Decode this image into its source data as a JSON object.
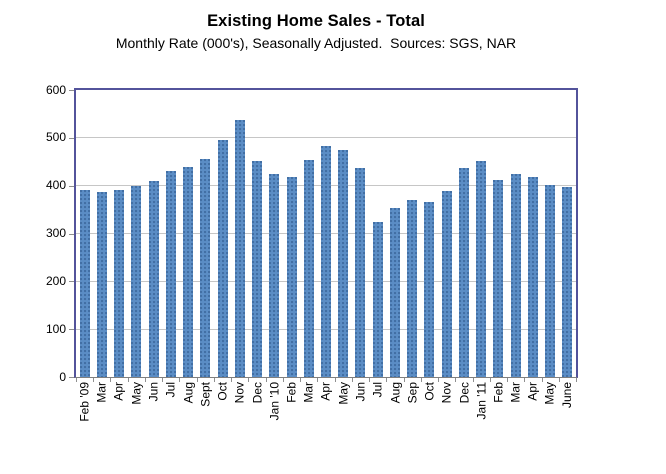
{
  "title": "Existing Home Sales - Total",
  "subtitle": "Monthly Rate (000's), Seasonally Adjusted.  Sources: SGS, NAR",
  "colors": {
    "bar_fill": "#5B8DC5",
    "bar_speckle": "#3F6FA3",
    "plot_border": "#53539B",
    "axis_line": "#7F7F7F",
    "gridline": "#C6C6C6",
    "text": "#000000"
  },
  "chart_data": {
    "type": "bar",
    "title": "Existing Home Sales - Total",
    "subtitle": "Monthly Rate (000's), Seasonally Adjusted.  Sources: SGS, NAR",
    "categories": [
      "Feb '09",
      "Mar",
      "Apr",
      "May",
      "Jun",
      "Jul",
      "Aug",
      "Sept",
      "Oct",
      "Nov",
      "Dec",
      "Jan '10",
      "Feb",
      "Mar",
      "Apr",
      "May",
      "Jun",
      "Jul",
      "Aug",
      "Sep",
      "Oct",
      "Nov",
      "Dec",
      "Jan '11",
      "Feb",
      "Mar",
      "Apr",
      "May",
      "June"
    ],
    "values": [
      390,
      386,
      392,
      399,
      410,
      431,
      440,
      455,
      495,
      538,
      452,
      425,
      419,
      454,
      484,
      474,
      437,
      324,
      354,
      370,
      365,
      388,
      437,
      451,
      411,
      424,
      418,
      401,
      398
    ],
    "xlabel": "",
    "ylabel": "",
    "ylim": [
      0,
      600
    ],
    "yticks": [
      0,
      100,
      200,
      300,
      400,
      500,
      600
    ],
    "grid": "horizontal",
    "legend": "none"
  }
}
